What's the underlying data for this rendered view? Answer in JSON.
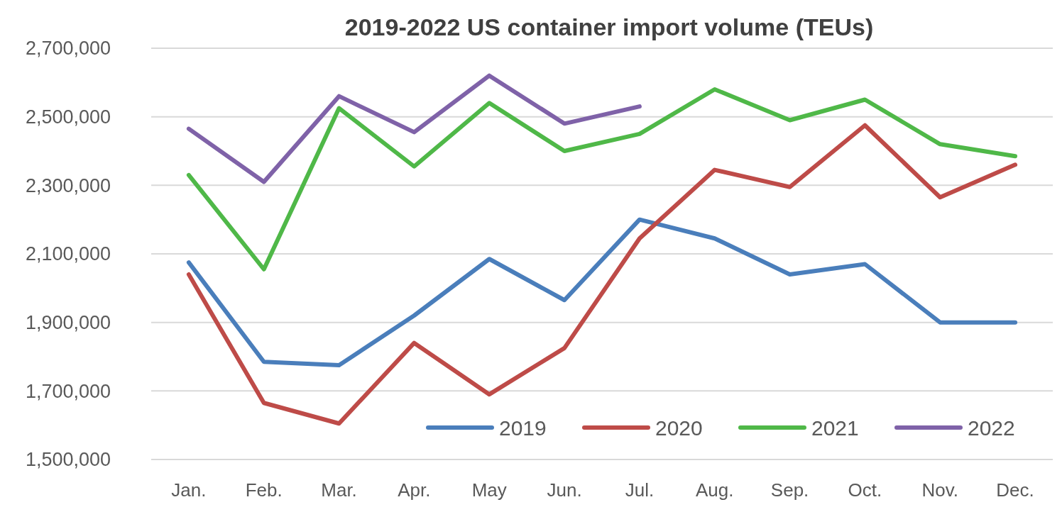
{
  "chart_data": {
    "type": "line",
    "title": "2019-2022 US container import volume (TEUs)",
    "categories": [
      "Jan.",
      "Feb.",
      "Mar.",
      "Apr.",
      "May",
      "Jun.",
      "Jul.",
      "Aug.",
      "Sep.",
      "Oct.",
      "Nov.",
      "Dec."
    ],
    "series": [
      {
        "name": "2019",
        "color": "#4a7ebb",
        "values": [
          2075000,
          1785000,
          1775000,
          1920000,
          2085000,
          1965000,
          2200000,
          2145000,
          2040000,
          2070000,
          1900000,
          1900000
        ]
      },
      {
        "name": "2020",
        "color": "#be4b48",
        "values": [
          2040000,
          1665000,
          1605000,
          1840000,
          1690000,
          1825000,
          2145000,
          2345000,
          2295000,
          2475000,
          2265000,
          2360000
        ]
      },
      {
        "name": "2021",
        "color": "#4fb848",
        "values": [
          2330000,
          2055000,
          2525000,
          2355000,
          2540000,
          2400000,
          2450000,
          2580000,
          2490000,
          2550000,
          2420000,
          2385000
        ]
      },
      {
        "name": "2022",
        "color": "#7f62a8",
        "values": [
          2465000,
          2310000,
          2560000,
          2455000,
          2620000,
          2480000,
          2530000,
          null,
          null,
          null,
          null,
          null
        ]
      }
    ],
    "ylim": [
      1500000,
      2700000
    ],
    "yticks": [
      {
        "value": 1500000,
        "label": "1,500,000"
      },
      {
        "value": 1700000,
        "label": "1,700,000"
      },
      {
        "value": 1900000,
        "label": "1,900,000"
      },
      {
        "value": 2100000,
        "label": "2,100,000"
      },
      {
        "value": 2300000,
        "label": "2,300,000"
      },
      {
        "value": 2500000,
        "label": "2,500,000"
      },
      {
        "value": 2700000,
        "label": "2,700,000"
      }
    ],
    "grid": true,
    "legend": "bottom right",
    "marker": "none",
    "line_style": "solid"
  }
}
